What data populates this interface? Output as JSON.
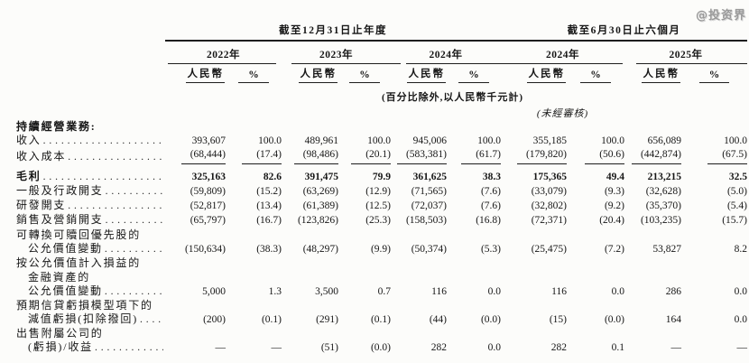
{
  "watermark": "@投资界",
  "table": {
    "groups": [
      {
        "title": "截至12月31日止年度",
        "years": [
          "2022年",
          "2023年",
          "2024年"
        ]
      },
      {
        "title": "截至6月30日止六個月",
        "years": [
          "2024年",
          "2025年"
        ]
      }
    ],
    "subheaders": {
      "currency": "人民幣",
      "percent": "%"
    },
    "notes": {
      "units": "(百分比除外,以人民幣千元計)",
      "unaudited": "(未經審核)"
    },
    "rows": [
      {
        "label": "持續經營業務:",
        "bold": true,
        "values": []
      },
      {
        "label": "收入",
        "leader": true,
        "values": [
          "393,607",
          "100.0",
          "489,961",
          "100.0",
          "945,006",
          "100.0",
          "355,185",
          "100.0",
          "656,089",
          "100.0"
        ]
      },
      {
        "label": "收入成本",
        "leader": true,
        "underline": true,
        "values": [
          "(68,444)",
          "(17.4)",
          "(98,486)",
          "(20.1)",
          "(583,381)",
          "(61.7)",
          "(179,820)",
          "(50.6)",
          "(442,874)",
          "(67.5)"
        ]
      },
      {
        "label": "毛利",
        "leader": true,
        "bold": true,
        "gap_top": true,
        "values": [
          "325,163",
          "82.6",
          "391,475",
          "79.9",
          "361,625",
          "38.3",
          "175,365",
          "49.4",
          "213,215",
          "32.5"
        ]
      },
      {
        "label": "一般及行政開支",
        "leader": true,
        "values": [
          "(59,809)",
          "(15.2)",
          "(63,269)",
          "(12.9)",
          "(71,565)",
          "(7.6)",
          "(33,079)",
          "(9.3)",
          "(32,628)",
          "(5.0)"
        ]
      },
      {
        "label": "研發開支",
        "leader": true,
        "values": [
          "(52,817)",
          "(13.4)",
          "(61,389)",
          "(12.5)",
          "(72,037)",
          "(7.6)",
          "(32,802)",
          "(9.2)",
          "(35,370)",
          "(5.4)"
        ]
      },
      {
        "label": "銷售及營銷開支",
        "leader": true,
        "values": [
          "(65,797)",
          "(16.7)",
          "(123,826)",
          "(25.3)",
          "(158,503)",
          "(16.8)",
          "(72,371)",
          "(20.4)",
          "(103,235)",
          "(15.7)"
        ]
      },
      {
        "label": "可轉換可贖回優先股的",
        "values": []
      },
      {
        "label": "公允價值變動",
        "indent": 1,
        "leader": true,
        "values": [
          "(150,634)",
          "(38.3)",
          "(48,297)",
          "(9.9)",
          "(50,374)",
          "(5.3)",
          "(25,475)",
          "(7.2)",
          "53,827",
          "8.2"
        ]
      },
      {
        "label": "按公允價值計入損益的",
        "values": []
      },
      {
        "label": "金融資產的",
        "indent": 1,
        "values": []
      },
      {
        "label": "公允價值變動",
        "indent": 1,
        "leader": true,
        "values": [
          "5,000",
          "1.3",
          "3,500",
          "0.7",
          "116",
          "0.0",
          "116",
          "0.0",
          "286",
          "0.0"
        ]
      },
      {
        "label": "預期信貸虧損模型項下的",
        "values": []
      },
      {
        "label": "減值虧損(扣除撥回)",
        "indent": 1,
        "leader": true,
        "values": [
          "(200)",
          "(0.1)",
          "(291)",
          "(0.1)",
          "(44)",
          "(0.0)",
          "(15)",
          "(0.0)",
          "164",
          "0.0"
        ]
      },
      {
        "label": "出售附屬公司的",
        "values": []
      },
      {
        "label": "(虧損)/收益",
        "indent": 1,
        "leader": true,
        "values": [
          "—",
          "—",
          "(51)",
          "(0.0)",
          "282",
          "0.0",
          "282",
          "0.1",
          "—",
          "—"
        ]
      }
    ]
  }
}
